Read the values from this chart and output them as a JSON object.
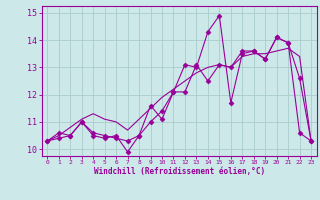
{
  "x": [
    0,
    1,
    2,
    3,
    4,
    5,
    6,
    7,
    8,
    9,
    10,
    11,
    12,
    13,
    14,
    15,
    16,
    17,
    18,
    19,
    20,
    21,
    22,
    23
  ],
  "line1": [
    10.3,
    10.6,
    10.5,
    11.0,
    10.5,
    10.4,
    10.5,
    9.9,
    10.5,
    11.6,
    11.1,
    12.1,
    13.1,
    13.0,
    14.3,
    14.9,
    11.7,
    13.5,
    13.6,
    13.3,
    14.1,
    13.9,
    10.6,
    10.3
  ],
  "line2": [
    10.3,
    10.4,
    10.5,
    11.0,
    10.6,
    10.5,
    10.4,
    10.3,
    10.5,
    11.0,
    11.4,
    12.1,
    12.1,
    13.1,
    12.5,
    13.1,
    13.0,
    13.6,
    13.6,
    13.3,
    14.1,
    13.9,
    12.6,
    10.3
  ],
  "line3": [
    10.3,
    10.5,
    10.8,
    11.1,
    11.3,
    11.1,
    11.0,
    10.7,
    11.1,
    11.5,
    11.9,
    12.2,
    12.5,
    12.8,
    13.0,
    13.1,
    13.0,
    13.4,
    13.5,
    13.5,
    13.6,
    13.7,
    13.4,
    10.3
  ],
  "color": "#990099",
  "bg_color": "#cce8e8",
  "grid_color": "#aacccc",
  "xlabel": "Windchill (Refroidissement éolien,°C)",
  "xlim": [
    -0.5,
    23.5
  ],
  "ylim": [
    9.75,
    15.25
  ],
  "yticks": [
    10,
    11,
    12,
    13,
    14,
    15
  ],
  "xticks": [
    0,
    1,
    2,
    3,
    4,
    5,
    6,
    7,
    8,
    9,
    10,
    11,
    12,
    13,
    14,
    15,
    16,
    17,
    18,
    19,
    20,
    21,
    22,
    23
  ]
}
